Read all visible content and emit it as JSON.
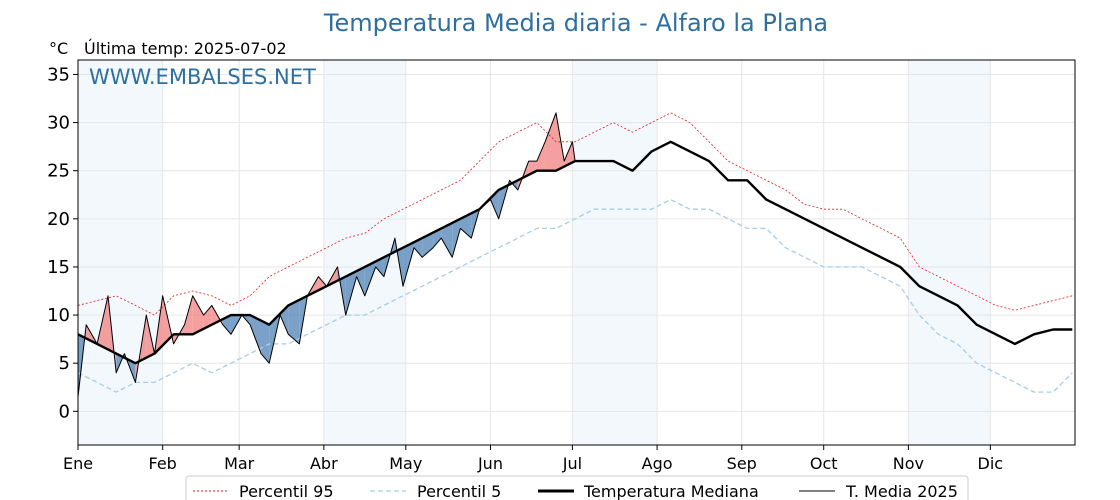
{
  "chart_data": {
    "type": "line",
    "title": "Temperatura Media diaria - Alfaro la Plana",
    "unit_label": "°C",
    "subtitle": "Última temp: 2025-07-02",
    "watermark": "WWW.EMBALSES.NET",
    "ylim": [
      -3.5,
      36.5
    ],
    "yticks": [
      0,
      5,
      10,
      15,
      20,
      25,
      30,
      35
    ],
    "xlim_days": [
      1,
      366
    ],
    "month_ticks": [
      {
        "label": "Ene",
        "day": 1
      },
      {
        "label": "Feb",
        "day": 32
      },
      {
        "label": "Mar",
        "day": 60
      },
      {
        "label": "Abr",
        "day": 91
      },
      {
        "label": "May",
        "day": 121
      },
      {
        "label": "Jun",
        "day": 152
      },
      {
        "label": "Jul",
        "day": 182
      },
      {
        "label": "Ago",
        "day": 213
      },
      {
        "label": "Sep",
        "day": 244
      },
      {
        "label": "Oct",
        "day": 274
      },
      {
        "label": "Nov",
        "day": 305
      },
      {
        "label": "Dic",
        "day": 335
      }
    ],
    "shaded_month_ranges": [
      [
        1,
        32
      ],
      [
        91,
        121
      ],
      [
        182,
        213
      ],
      [
        305,
        335
      ]
    ],
    "grid": true,
    "legend_position": "bottom",
    "series": [
      {
        "name": "Percentil 95",
        "color": "#e31a1c",
        "style": "dotted",
        "x": [
          1,
          8,
          15,
          22,
          29,
          36,
          43,
          50,
          57,
          64,
          71,
          78,
          85,
          92,
          99,
          106,
          113,
          120,
          127,
          134,
          141,
          148,
          155,
          162,
          169,
          176,
          183,
          190,
          197,
          204,
          211,
          218,
          225,
          232,
          239,
          246,
          253,
          260,
          267,
          274,
          281,
          288,
          295,
          302,
          309,
          316,
          323,
          330,
          337,
          344,
          351,
          358,
          365
        ],
        "y": [
          11,
          11.5,
          12,
          11,
          10,
          12,
          12.5,
          12,
          11,
          12,
          14,
          15,
          16,
          17,
          18,
          18.5,
          20,
          21,
          22,
          23,
          24,
          26,
          28,
          29,
          30,
          28,
          28,
          29,
          30,
          29,
          30,
          31,
          30,
          28,
          26,
          25,
          24,
          23,
          21.5,
          21,
          21,
          20,
          19,
          18,
          15,
          14,
          13,
          12,
          11,
          10.5,
          11,
          11.5,
          12
        ]
      },
      {
        "name": "Percentil 5",
        "color": "#a6cee3",
        "style": "dashed",
        "x": [
          1,
          8,
          15,
          22,
          29,
          36,
          43,
          50,
          57,
          64,
          71,
          78,
          85,
          92,
          99,
          106,
          113,
          120,
          127,
          134,
          141,
          148,
          155,
          162,
          169,
          176,
          183,
          190,
          197,
          204,
          211,
          218,
          225,
          232,
          239,
          246,
          253,
          260,
          267,
          274,
          281,
          288,
          295,
          302,
          309,
          316,
          323,
          330,
          337,
          344,
          351,
          358,
          365
        ],
        "y": [
          4,
          3,
          2,
          3,
          3,
          4,
          5,
          4,
          5,
          6,
          7,
          7,
          8,
          9,
          10,
          10,
          11,
          12,
          13,
          14,
          15,
          16,
          17,
          18,
          19,
          19,
          20,
          21,
          21,
          21,
          21,
          22,
          21,
          21,
          20,
          19,
          19,
          17,
          16,
          15,
          15,
          15,
          14,
          13,
          10,
          8,
          7,
          5,
          4,
          3,
          2,
          2,
          4
        ]
      },
      {
        "name": "Temperatura Mediana",
        "color": "#000000",
        "style": "solid-bold",
        "x": [
          1,
          8,
          15,
          22,
          29,
          36,
          43,
          50,
          57,
          64,
          71,
          78,
          85,
          92,
          99,
          106,
          113,
          120,
          127,
          134,
          141,
          148,
          155,
          162,
          169,
          176,
          183,
          190,
          197,
          204,
          211,
          218,
          225,
          232,
          239,
          246,
          253,
          260,
          267,
          274,
          281,
          288,
          295,
          302,
          309,
          316,
          323,
          330,
          337,
          344,
          351,
          358,
          365
        ],
        "y": [
          8,
          7,
          6,
          5,
          6,
          8,
          8,
          9,
          10,
          10,
          9,
          11,
          12,
          13,
          14,
          15,
          16,
          17,
          18,
          19,
          20,
          21,
          23,
          24,
          25,
          25,
          26,
          26,
          26,
          25,
          27,
          28,
          27,
          26,
          24,
          24,
          22,
          21,
          20,
          19,
          18,
          17,
          16,
          15,
          13,
          12,
          11,
          9,
          8,
          7,
          8,
          8.5,
          8.5
        ]
      },
      {
        "name": "T. Media 2025",
        "color": "#000000",
        "style": "solid-thin",
        "x": [
          1,
          4,
          8,
          12,
          15,
          18,
          22,
          26,
          29,
          32,
          36,
          40,
          43,
          47,
          50,
          54,
          57,
          61,
          64,
          68,
          71,
          75,
          78,
          82,
          85,
          89,
          92,
          96,
          99,
          103,
          106,
          110,
          113,
          117,
          120,
          124,
          127,
          131,
          134,
          138,
          141,
          145,
          148,
          152,
          155,
          159,
          162,
          166,
          169,
          172,
          176,
          179,
          182,
          183
        ],
        "y": [
          1.5,
          9,
          7,
          12,
          4,
          6,
          3,
          10,
          6,
          12,
          7,
          9,
          12,
          10,
          11,
          9,
          8,
          10,
          9,
          6,
          5,
          10,
          8,
          7,
          12,
          14,
          13,
          15,
          10,
          14,
          12,
          15,
          14,
          18,
          13,
          17,
          16,
          17,
          18,
          16,
          19,
          18,
          21,
          22,
          20,
          24,
          23,
          26,
          26,
          28,
          31,
          26,
          28,
          26
        ]
      }
    ]
  }
}
